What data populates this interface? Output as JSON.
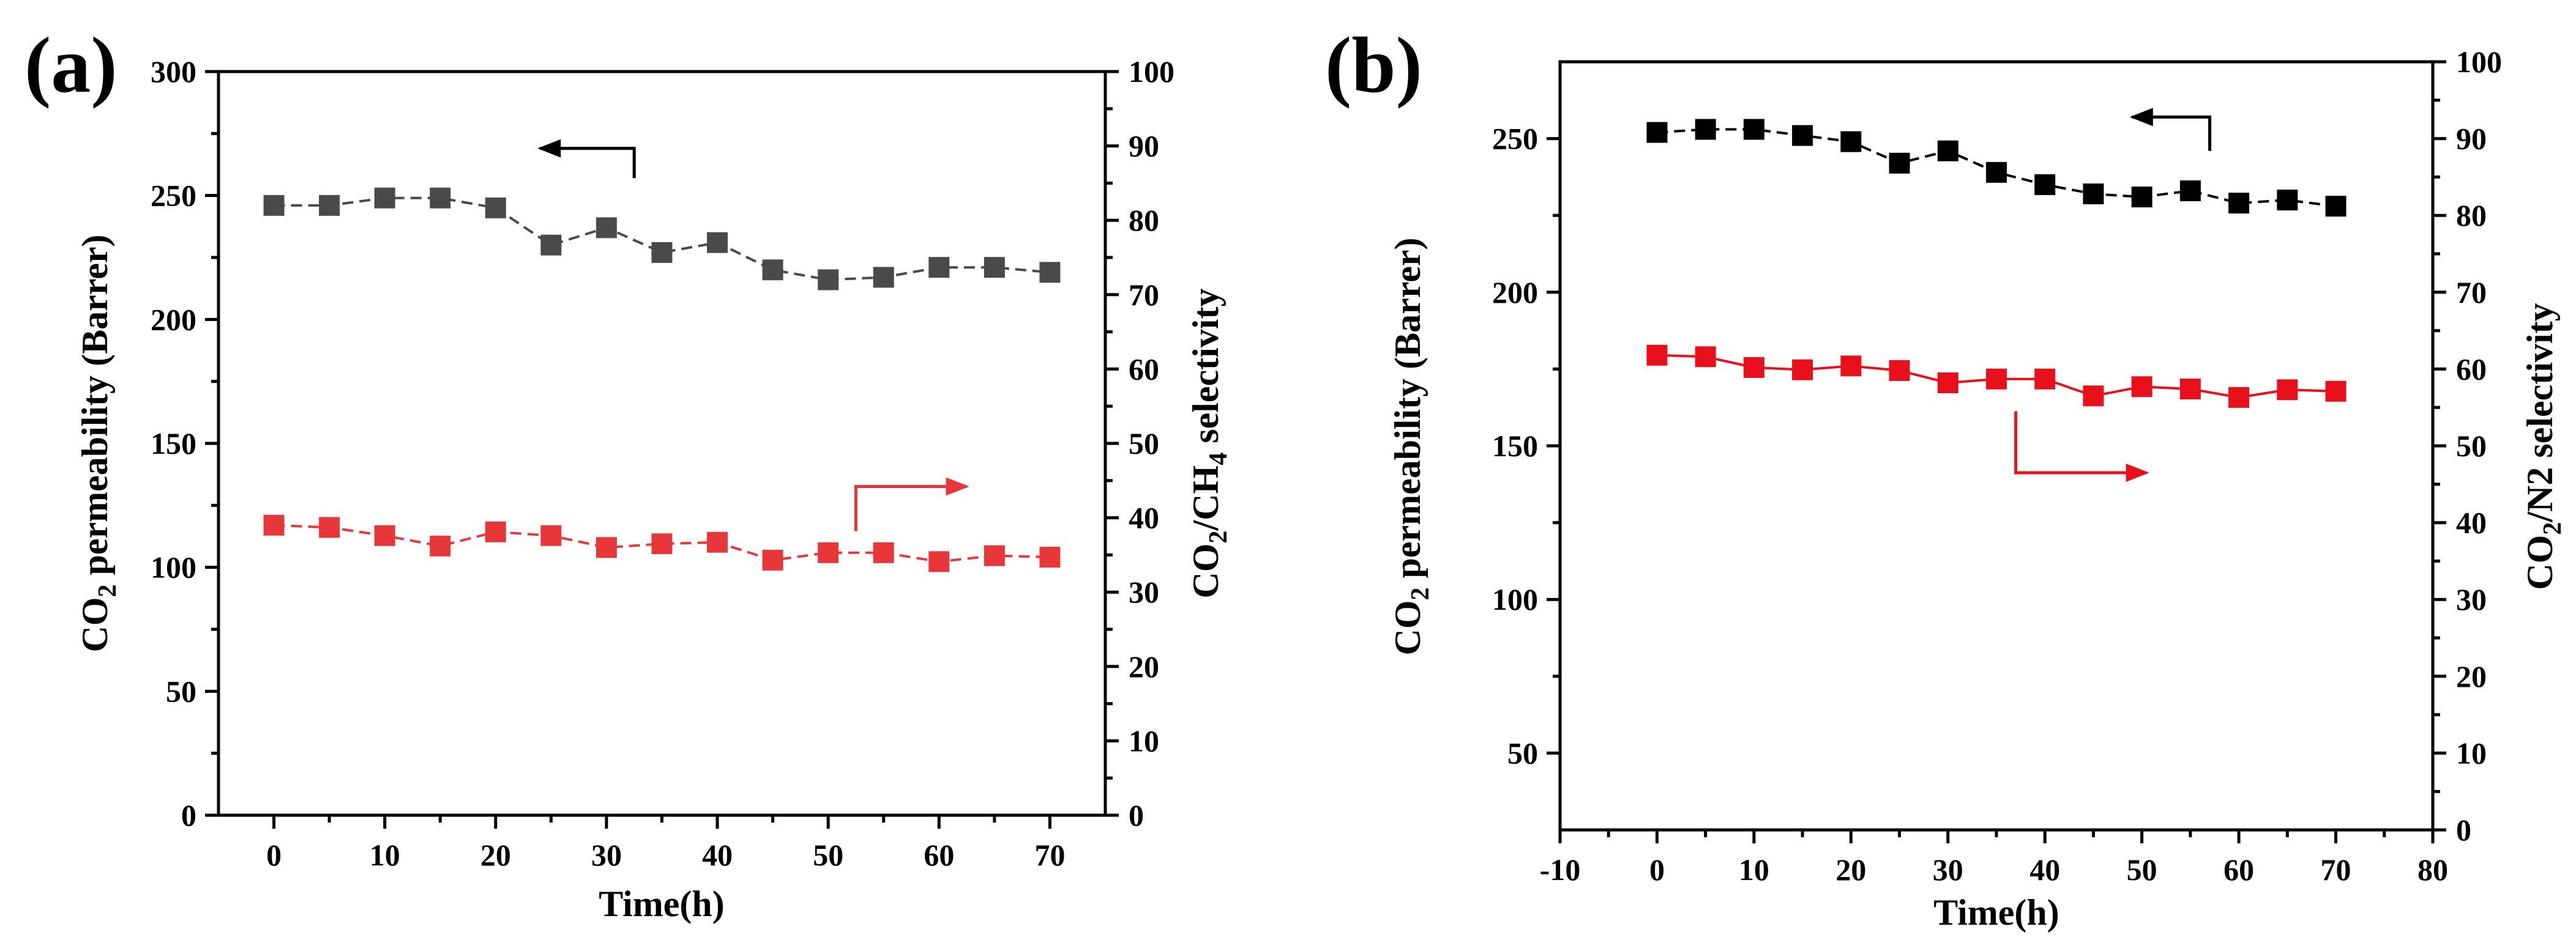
{
  "chart_data": [
    {
      "panel": "(a)",
      "type": "line",
      "xlabel": "Time(h)",
      "ylabel": {
        "prefix": "CO",
        "sub": "2",
        "suffix": " permeability (Barrer)"
      },
      "y2label": {
        "p1": "CO",
        "s1": "2",
        "p2": "/CH",
        "s2": "4",
        "p3": " selectivity"
      },
      "xlim": [
        -5,
        75
      ],
      "ylim": [
        0,
        300
      ],
      "y2lim": [
        0,
        100
      ],
      "xticks": [
        "0",
        "10",
        "20",
        "30",
        "40",
        "50",
        "60",
        "70"
      ],
      "yticks": [
        "0",
        "50",
        "100",
        "150",
        "200",
        "250",
        "300"
      ],
      "y2ticks": [
        "0",
        "10",
        "20",
        "30",
        "40",
        "50",
        "60",
        "70",
        "80",
        "90",
        "100"
      ],
      "x": [
        0,
        5,
        10,
        15,
        20,
        25,
        30,
        35,
        40,
        45,
        50,
        55,
        60,
        65,
        70
      ],
      "series": [
        {
          "name": "CO2 permeability",
          "axis": "left",
          "color": "#4a4a4a",
          "dashed": true,
          "values": [
            246,
            246,
            249,
            249,
            245,
            230,
            237,
            227,
            231,
            220,
            216,
            217,
            221,
            221,
            219
          ]
        },
        {
          "name": "CO2/CH4 selectivity",
          "axis": "right",
          "color": "#e8373b",
          "dashed": true,
          "values": [
            39,
            38.7,
            37.6,
            36.2,
            38.1,
            37.6,
            36,
            36.5,
            36.7,
            34.3,
            35.3,
            35.3,
            34.1,
            34.9,
            34.7
          ]
        }
      ],
      "annotations": [
        {
          "type": "arrow",
          "axis": "left",
          "color": "#000000",
          "direction": "left",
          "x_from": 32.5,
          "x_to": 24,
          "y": 269,
          "tail_to_y": 257
        },
        {
          "type": "arrow",
          "axis": "right",
          "color": "#e8373b",
          "direction": "right",
          "x_from": 52.5,
          "x_to": 62.5,
          "y": 44.2,
          "tail_to_y": 38.2
        }
      ]
    },
    {
      "panel": "(b)",
      "type": "line",
      "xlabel": "Time(h)",
      "ylabel": {
        "prefix": "CO",
        "sub": "2",
        "suffix": " permeability (Barrer)"
      },
      "y2label": {
        "p1": "CO",
        "s1": "2",
        "p2": "/N2 selectivity"
      },
      "xlim": [
        -10,
        80
      ],
      "ylim": [
        25,
        275
      ],
      "y2lim": [
        0,
        100
      ],
      "xticks": [
        "-10",
        "0",
        "10",
        "20",
        "30",
        "40",
        "50",
        "60",
        "70",
        "80"
      ],
      "yticks": [
        "50",
        "100",
        "150",
        "200",
        "250"
      ],
      "y2ticks": [
        "0",
        "10",
        "20",
        "30",
        "40",
        "50",
        "60",
        "70",
        "80",
        "90",
        "100"
      ],
      "x": [
        0,
        5,
        10,
        15,
        20,
        25,
        30,
        35,
        40,
        45,
        50,
        55,
        60,
        65,
        70
      ],
      "series": [
        {
          "name": "CO2 permeability",
          "axis": "left",
          "color": "#000000",
          "dashed": true,
          "values": [
            252,
            253,
            253,
            251,
            249,
            242,
            246,
            239,
            235,
            232,
            231,
            233,
            229,
            230,
            228
          ]
        },
        {
          "name": "CO2/N2 selectivity",
          "axis": "right",
          "color": "#e8101a",
          "dashed": false,
          "values": [
            61.8,
            61.6,
            60.2,
            59.9,
            60.4,
            59.8,
            58.2,
            58.7,
            58.7,
            56.5,
            57.7,
            57.4,
            56.3,
            57.3,
            57.1
          ]
        }
      ],
      "annotations": [
        {
          "type": "arrow",
          "axis": "left",
          "color": "#000000",
          "direction": "left",
          "x_from": 57,
          "x_to": 49,
          "y": 257,
          "tail_to_y": 246
        },
        {
          "type": "arrow",
          "axis": "right",
          "color": "#e8101a",
          "direction": "right",
          "x_from": 37,
          "x_to": 50.5,
          "y": 46.5,
          "tail_to_y": 54.5
        }
      ]
    }
  ]
}
